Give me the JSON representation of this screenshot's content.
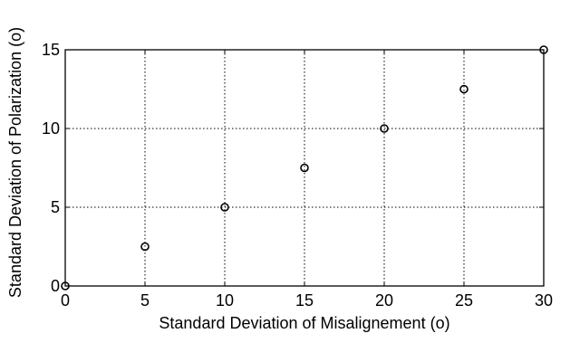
{
  "chart_data": {
    "type": "scatter",
    "title": "",
    "xlabel": "Standard Deviation of Misalignement (o)",
    "ylabel": "Standard Deviation of Polarization (o)",
    "xlim": [
      0,
      30
    ],
    "ylim": [
      0,
      15
    ],
    "xticks": [
      0,
      5,
      10,
      15,
      20,
      25,
      30
    ],
    "yticks": [
      0,
      5,
      10,
      15
    ],
    "xtick_labels": [
      "0",
      "5",
      "10",
      "15",
      "20",
      "25",
      "30"
    ],
    "ytick_labels": [
      "0",
      "5",
      "10",
      "15"
    ],
    "grid": true,
    "grid_style": "dotted",
    "marker": "circle",
    "marker_color": "#000000",
    "series": [
      {
        "x": [
          0,
          5,
          10,
          15,
          20,
          25,
          30
        ],
        "y": [
          0,
          2.5,
          5,
          7.5,
          10,
          12.5,
          15
        ]
      }
    ]
  }
}
